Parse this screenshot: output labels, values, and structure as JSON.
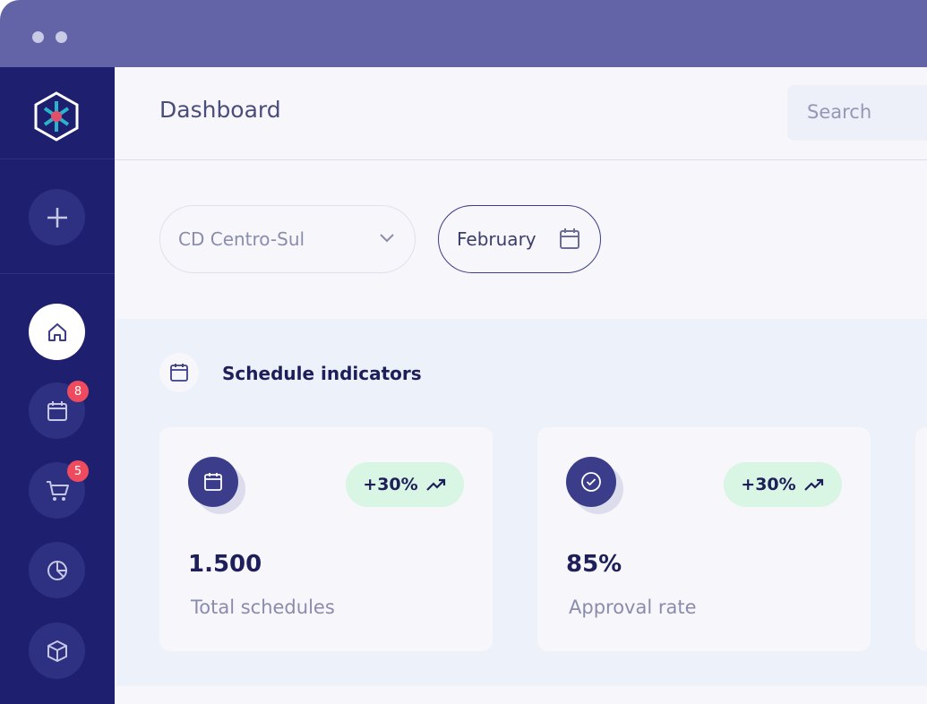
{
  "header": {
    "title": "Dashboard",
    "search_placeholder": "Search"
  },
  "sidebar": {
    "badges": [
      "8",
      "5"
    ]
  },
  "filters": {
    "center": "CD Centro-Sul",
    "month": "February"
  },
  "section": {
    "title": "Schedule indicators",
    "cards": [
      {
        "change": "+30%",
        "value": "1.500",
        "label": "Total schedules"
      },
      {
        "change": "+30%",
        "value": "85%",
        "label": "Approval rate"
      }
    ]
  }
}
